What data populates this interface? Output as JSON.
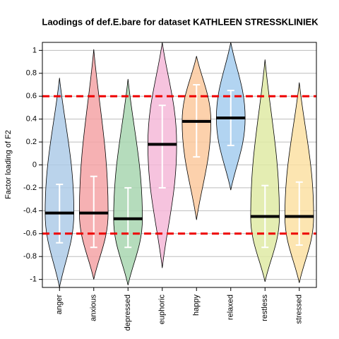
{
  "chart_data": {
    "type": "violin",
    "title": "Laodings of def.E.bare for dataset KATHLEEN STRESSKLINIEK",
    "y_label": "Factor loading of F2",
    "categories": [
      "anger",
      "anxious",
      "depressed",
      "euphoric",
      "happy",
      "relaxed",
      "restless",
      "stressed"
    ],
    "colors": [
      "#aecbe8",
      "#f4a3a6",
      "#a8d6b0",
      "#f5b9d8",
      "#fbc99e",
      "#a5cdef",
      "#dfeaa5",
      "#fbe0a3"
    ],
    "medians": [
      -0.42,
      -0.42,
      -0.47,
      0.18,
      0.38,
      0.41,
      -0.45,
      -0.45
    ],
    "mins": [
      -1.07,
      -1.0,
      -1.05,
      -0.9,
      -0.48,
      -0.22,
      -1.02,
      -1.03
    ],
    "maxs": [
      0.76,
      1.01,
      0.75,
      1.07,
      0.95,
      1.07,
      0.92,
      0.72
    ],
    "ci_low": [
      -0.68,
      -0.72,
      -0.72,
      -0.2,
      0.07,
      0.17,
      -0.72,
      -0.7
    ],
    "ci_high": [
      -0.17,
      -0.1,
      -0.2,
      0.52,
      0.7,
      0.65,
      -0.18,
      -0.15
    ],
    "hlines": [
      0.6,
      -0.6
    ],
    "hline_color": "#ee0000",
    "ylim": [
      -1.07,
      1.07
    ],
    "yticks": [
      -1,
      -0.8,
      -0.6,
      -0.4,
      -0.2,
      0,
      0.2,
      0.4,
      0.6,
      0.8,
      1
    ],
    "grid": true
  }
}
